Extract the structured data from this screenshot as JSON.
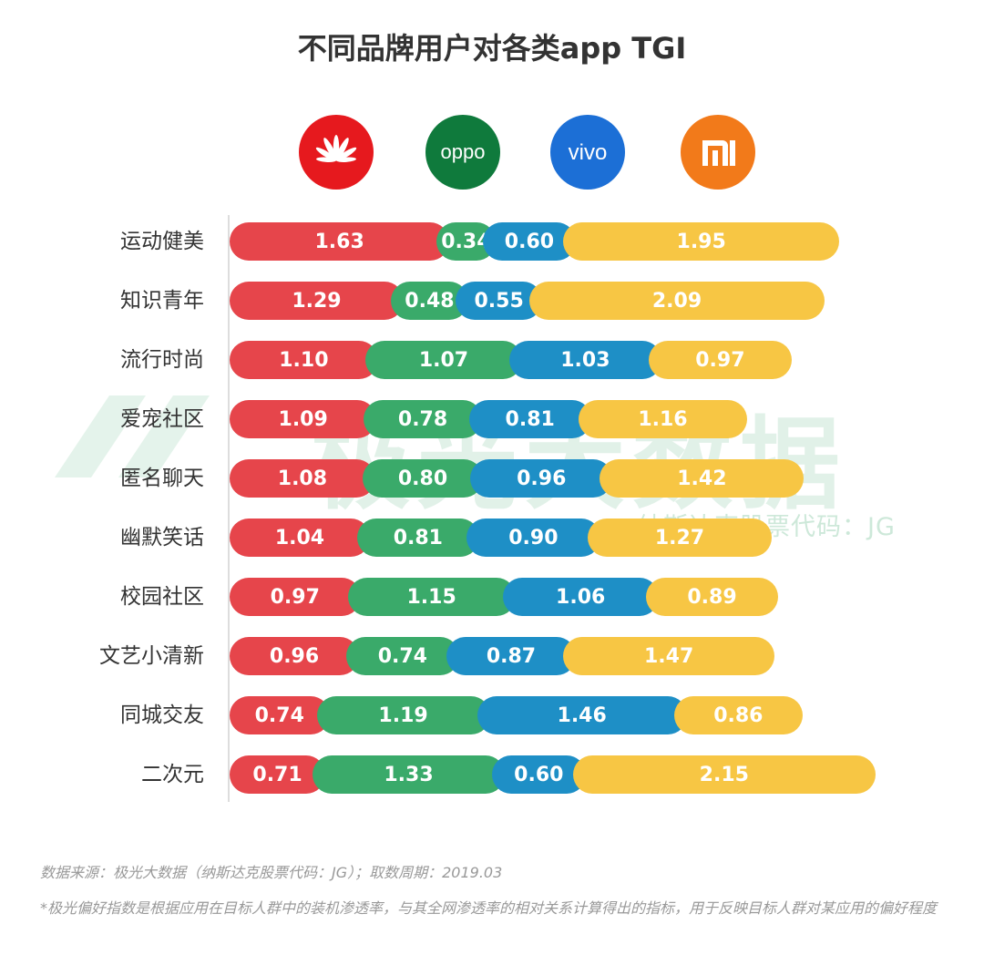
{
  "title": "不同品牌用户对各类app TGI",
  "watermark": {
    "main": "极光大数据",
    "sub": "纳斯达克股票代码：JG"
  },
  "brands": [
    {
      "name": "huawei",
      "color": "#e6454b",
      "logo_text": ""
    },
    {
      "name": "oppo",
      "color": "#2aa15a",
      "logo_text": "oppo"
    },
    {
      "name": "vivo",
      "color": "#1e8cd4",
      "logo_text": "vivo"
    },
    {
      "name": "xiaomi",
      "color": "#f4a62a",
      "logo_text": "mi"
    }
  ],
  "colors": {
    "huawei_bar": "#e6454b",
    "oppo_bar": "#3aaa6a",
    "vivo_bar": "#1e8fc6",
    "xiaomi_bar": "#f7c644"
  },
  "chart_data": {
    "type": "bar",
    "stacked": true,
    "orientation": "horizontal",
    "title": "不同品牌用户对各类app TGI",
    "categories": [
      "运动健美",
      "知识青年",
      "流行时尚",
      "爱宠社区",
      "匿名聊天",
      "幽默笑话",
      "校园社区",
      "文艺小清新",
      "同城交友",
      "二次元"
    ],
    "series": [
      {
        "name": "华为",
        "values": [
          1.63,
          1.29,
          1.1,
          1.09,
          1.08,
          1.04,
          0.97,
          0.96,
          0.74,
          0.71
        ]
      },
      {
        "name": "OPPO",
        "values": [
          0.34,
          0.48,
          1.07,
          0.78,
          0.8,
          0.81,
          1.15,
          0.74,
          1.19,
          1.33
        ]
      },
      {
        "name": "vivo",
        "values": [
          0.6,
          0.55,
          1.03,
          0.81,
          0.96,
          0.9,
          1.06,
          0.87,
          1.46,
          0.6
        ]
      },
      {
        "name": "小米",
        "values": [
          1.95,
          2.09,
          0.97,
          1.16,
          1.42,
          1.27,
          0.89,
          1.47,
          0.86,
          2.15
        ]
      }
    ],
    "value_labels": [
      [
        "1.63",
        "1.29",
        "1.10",
        "1.09",
        "1.08",
        "1.04",
        "0.97",
        "0.96",
        "0.74",
        "0.71"
      ],
      [
        "0.34",
        "0.48",
        "1.07",
        "0.78",
        "0.80",
        "0.81",
        "1.15",
        "0.74",
        "1.19",
        "1.33"
      ],
      [
        "0.60",
        "0.55",
        "1.03",
        "0.81",
        "0.96",
        "0.90",
        "1.06",
        "0.87",
        "1.46",
        "0.60"
      ],
      [
        "1.95",
        "2.09",
        "0.97",
        "1.16",
        "1.42",
        "1.27",
        "0.89",
        "1.47",
        "0.86",
        "2.15"
      ]
    ],
    "xlabel": "",
    "ylabel": "",
    "grid": false,
    "legend": "brand logos at top"
  },
  "footer": {
    "source": "数据来源：极光大数据（纳斯达克股票代码：JG）；取数周期：2019.03",
    "note": "*极光偏好指数是根据应用在目标人群中的装机渗透率，与其全网渗透率的相对关系计算得出的指标，用于反映目标人群对某应用的偏好程度"
  }
}
